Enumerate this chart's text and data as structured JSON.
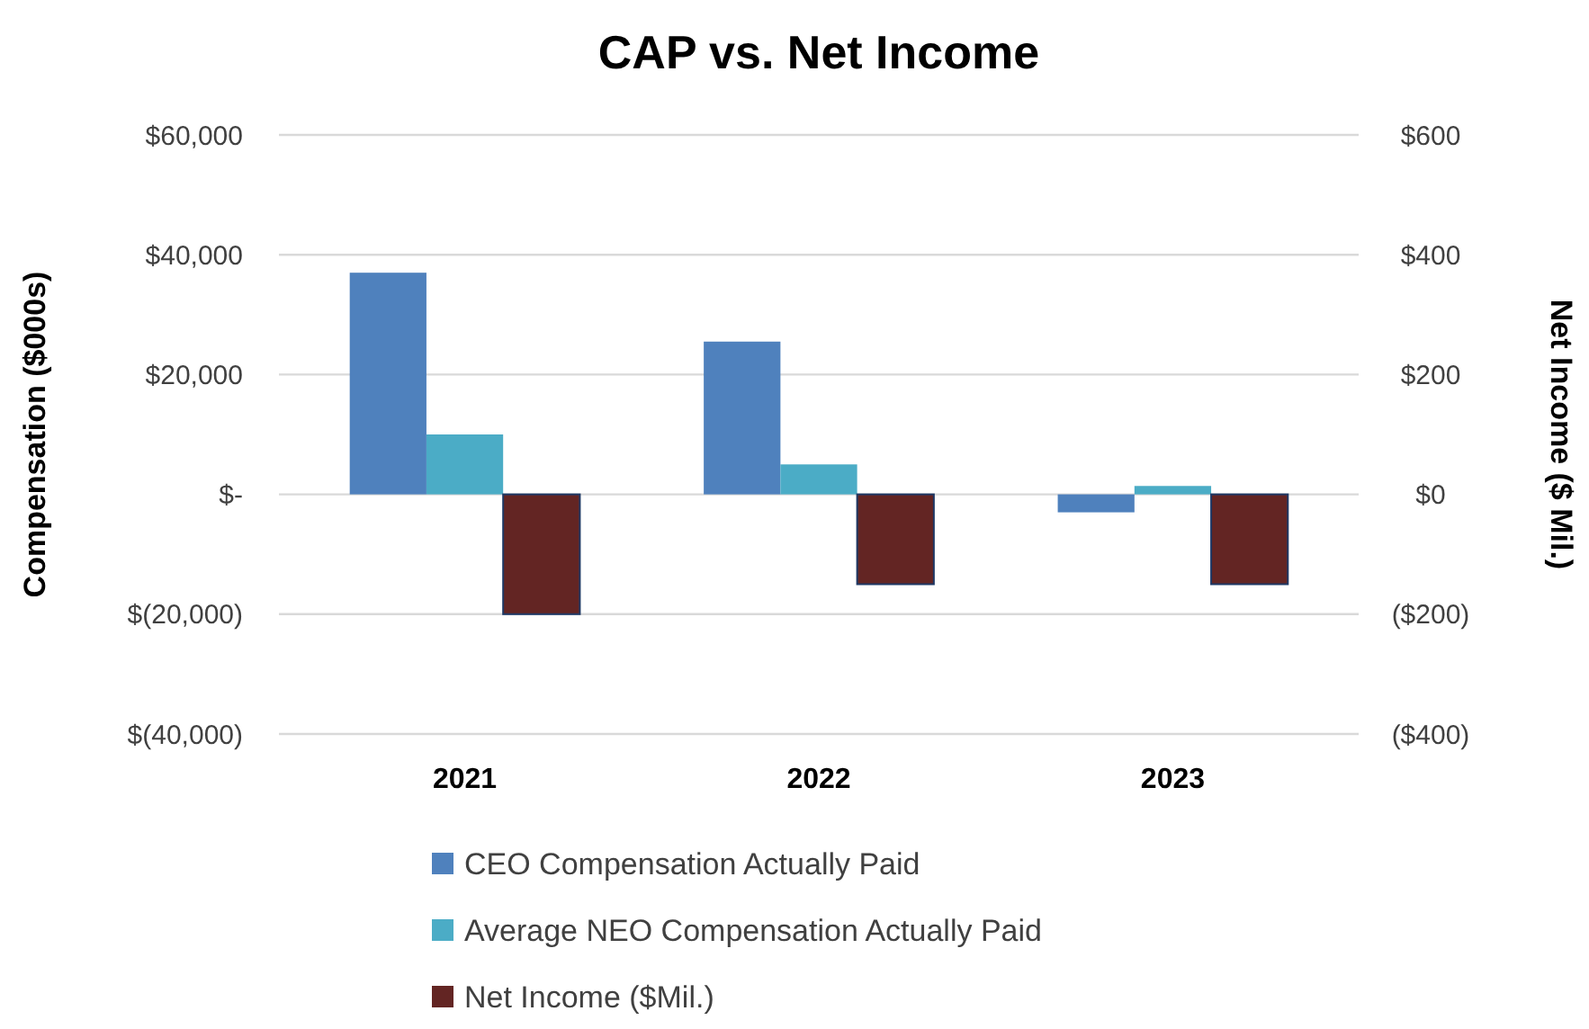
{
  "chart_data": {
    "type": "bar",
    "title": "CAP vs. Net Income",
    "ylabel": "Compensation ($000s)",
    "y2label": "Net Income ($ Mil.)",
    "categories": [
      "2021",
      "2022",
      "2023"
    ],
    "series": [
      {
        "name": "CEO Compensation Actually Paid",
        "color": "#4f81bd",
        "values": [
          37000,
          25500,
          -3000
        ]
      },
      {
        "name": "Average NEO Compensation Actually Paid",
        "color": "#4bacc6",
        "values": [
          10000,
          5000,
          1400
        ]
      },
      {
        "name": "Net Income ($Mil.)",
        "color": "#632523",
        "values": [
          -200,
          -150,
          -150
        ],
        "axis": "y2"
      }
    ],
    "ylim": [
      -40000,
      60000
    ],
    "yticks": [
      {
        "value": -40000,
        "label": "$(40,000)"
      },
      {
        "value": -20000,
        "label": "$(20,000)"
      },
      {
        "value": 0,
        "label": "$-"
      },
      {
        "value": 20000,
        "label": "$20,000"
      },
      {
        "value": 40000,
        "label": "$40,000"
      },
      {
        "value": 60000,
        "label": "$60,000"
      }
    ],
    "y2lim": [
      -400,
      600
    ],
    "y2ticks": [
      {
        "value": -400,
        "label": "($400)"
      },
      {
        "value": -200,
        "label": "($200)"
      },
      {
        "value": 0,
        "label": "$0"
      },
      {
        "value": 200,
        "label": "$200"
      },
      {
        "value": 400,
        "label": "$400"
      },
      {
        "value": 600,
        "label": "$600"
      }
    ],
    "grid": "y",
    "legend": "bottom"
  }
}
